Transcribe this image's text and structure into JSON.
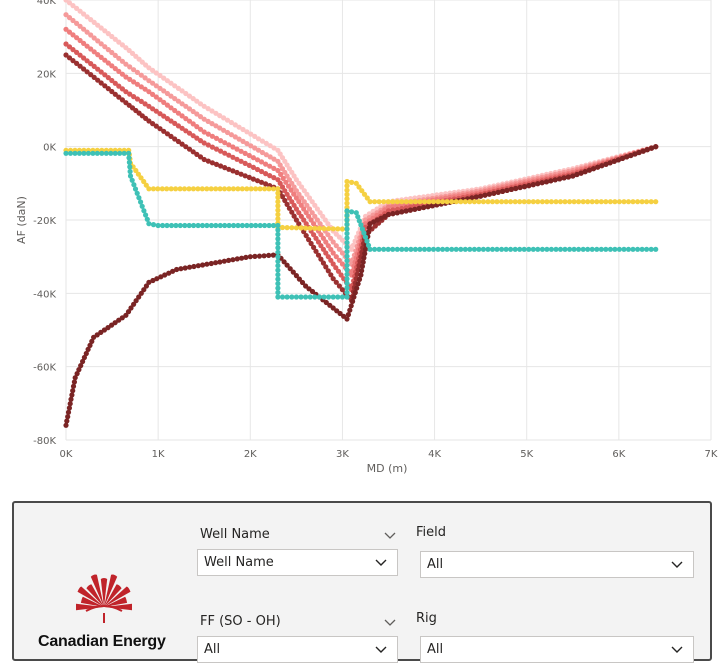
{
  "chart_data": {
    "type": "scatter",
    "xlabel": "MD (m)",
    "ylabel": "AF (daN)",
    "xlim": [
      0,
      7000
    ],
    "ylim": [
      -80000,
      40000
    ],
    "xticks": [
      "0K",
      "1K",
      "2K",
      "3K",
      "4K",
      "5K",
      "6K",
      "7K"
    ],
    "yticks": [
      "40K",
      "20K",
      "0K",
      "-20K",
      "-40K",
      "-60K",
      "-80K"
    ],
    "grid": true,
    "series": [
      {
        "color": "#fcc3c3",
        "points": [
          [
            0,
            40000
          ],
          [
            650,
            27000
          ],
          [
            900,
            21500
          ],
          [
            1500,
            11000
          ],
          [
            2300,
            -1000
          ],
          [
            2500,
            -9000
          ],
          [
            2900,
            -23000
          ],
          [
            3100,
            -28000
          ],
          [
            3250,
            -19000
          ],
          [
            3500,
            -15000
          ],
          [
            4500,
            -11500
          ],
          [
            5500,
            -6000
          ],
          [
            6400,
            0
          ]
        ]
      },
      {
        "color": "#f59a9a",
        "points": [
          [
            0,
            36000
          ],
          [
            650,
            22500
          ],
          [
            900,
            18000
          ],
          [
            1500,
            7500
          ],
          [
            2300,
            -4000
          ],
          [
            2500,
            -12000
          ],
          [
            2900,
            -26000
          ],
          [
            3100,
            -32000
          ],
          [
            3250,
            -20000
          ],
          [
            3500,
            -16000
          ],
          [
            4500,
            -12000
          ],
          [
            5500,
            -6500
          ],
          [
            6400,
            0
          ]
        ]
      },
      {
        "color": "#ef7e7e",
        "points": [
          [
            0,
            32000
          ],
          [
            650,
            19000
          ],
          [
            900,
            15000
          ],
          [
            1500,
            4000
          ],
          [
            2300,
            -6500
          ],
          [
            2500,
            -14000
          ],
          [
            2900,
            -29000
          ],
          [
            3100,
            -35000
          ],
          [
            3250,
            -21000
          ],
          [
            3500,
            -16500
          ],
          [
            4500,
            -12500
          ],
          [
            5500,
            -7000
          ],
          [
            6400,
            0
          ]
        ]
      },
      {
        "color": "#d85a5a",
        "points": [
          [
            0,
            28000
          ],
          [
            650,
            15000
          ],
          [
            900,
            11000
          ],
          [
            1500,
            1000
          ],
          [
            2300,
            -9000
          ],
          [
            2500,
            -17000
          ],
          [
            2900,
            -32000
          ],
          [
            3100,
            -39000
          ],
          [
            3250,
            -22000
          ],
          [
            3500,
            -17500
          ],
          [
            4500,
            -13000
          ],
          [
            5500,
            -7500
          ],
          [
            6400,
            0
          ]
        ]
      },
      {
        "color": "#9a3030",
        "points": [
          [
            0,
            25000
          ],
          [
            650,
            12000
          ],
          [
            900,
            7000
          ],
          [
            1500,
            -3500
          ],
          [
            2300,
            -11500
          ],
          [
            2500,
            -20000
          ],
          [
            2900,
            -36000
          ],
          [
            3100,
            -42000
          ],
          [
            3250,
            -24000
          ],
          [
            3500,
            -18500
          ],
          [
            4500,
            -13500
          ],
          [
            5500,
            -8000
          ],
          [
            6400,
            0
          ]
        ]
      },
      {
        "color": "#7a2424",
        "points": [
          [
            0,
            -76000
          ],
          [
            100,
            -63000
          ],
          [
            300,
            -52000
          ],
          [
            650,
            -46000
          ],
          [
            900,
            -37000
          ],
          [
            1200,
            -33500
          ],
          [
            2000,
            -30000
          ],
          [
            2300,
            -29500
          ],
          [
            2600,
            -38000
          ],
          [
            3050,
            -47000
          ],
          [
            3200,
            -35000
          ],
          [
            3300,
            -21000
          ],
          [
            3500,
            -18500
          ],
          [
            4500,
            -13500
          ],
          [
            5500,
            -8000
          ],
          [
            6400,
            0
          ]
        ]
      },
      {
        "color": "#f5d041",
        "points": [
          [
            0,
            -1000
          ],
          [
            680,
            -1000
          ],
          [
            700,
            -4500
          ],
          [
            900,
            -11500
          ],
          [
            2300,
            -11500
          ],
          [
            2300,
            -22000
          ],
          [
            3050,
            -22500
          ],
          [
            3050,
            -9500
          ],
          [
            3150,
            -10000
          ],
          [
            3300,
            -15000
          ],
          [
            6400,
            -15000
          ]
        ]
      },
      {
        "color": "#3ec1b6",
        "points": [
          [
            0,
            -1800
          ],
          [
            680,
            -1800
          ],
          [
            700,
            -8000
          ],
          [
            900,
            -21000
          ],
          [
            1000,
            -21500
          ],
          [
            2300,
            -21500
          ],
          [
            2300,
            -41000
          ],
          [
            3050,
            -41000
          ],
          [
            3050,
            -17500
          ],
          [
            3150,
            -18000
          ],
          [
            3300,
            -28000
          ],
          [
            6400,
            -28000
          ]
        ]
      }
    ]
  },
  "filters": {
    "brand": "Canadian Energy",
    "well_name_label": "Well Name",
    "well_name_value": "Well Name",
    "field_label": "Field",
    "field_value": "All",
    "ff_label": "FF (SO - OH)",
    "ff_value": "All",
    "rig_label": "Rig",
    "rig_value": "All",
    "logo_color": "#c0232a"
  }
}
